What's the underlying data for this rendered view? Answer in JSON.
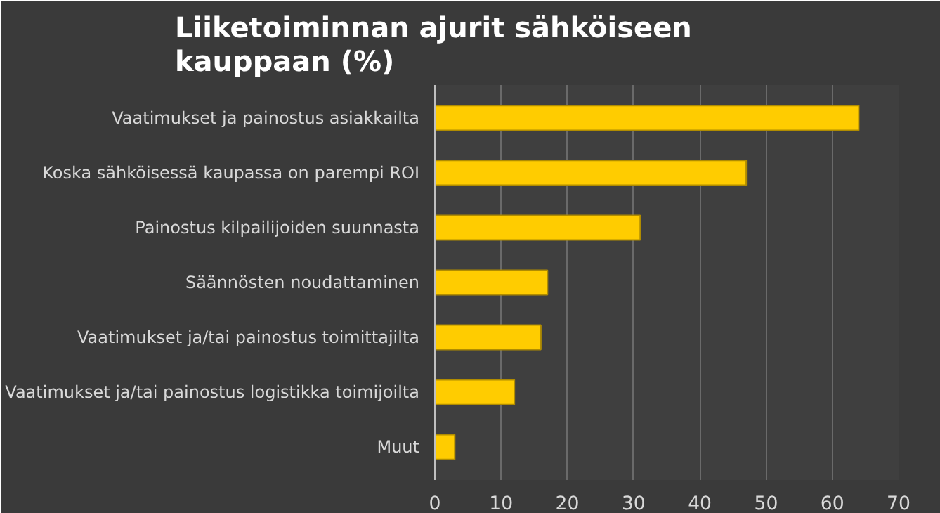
{
  "chart_data": {
    "type": "bar",
    "orientation": "horizontal",
    "title": "Liiketoiminnan ajurit sähköiseen\nkauppaan (%)",
    "categories": [
      "Vaatimukset ja painostus asiakkailta",
      "Koska sähköisessä kaupassa on parempi ROI",
      "Painostus kilpailijoiden suunnasta",
      "Säännösten noudattaminen",
      "Vaatimukset ja/tai painostus toimittajilta",
      "Vaatimukset ja/tai painostus logistikka toimijoilta",
      "Muut"
    ],
    "values": [
      64,
      47,
      31,
      17,
      16,
      12,
      3
    ],
    "color": "#ffcc00",
    "xlim": [
      0,
      70
    ],
    "xticks": [
      0,
      10,
      20,
      30,
      40,
      50,
      60,
      70
    ],
    "grid": "x"
  }
}
